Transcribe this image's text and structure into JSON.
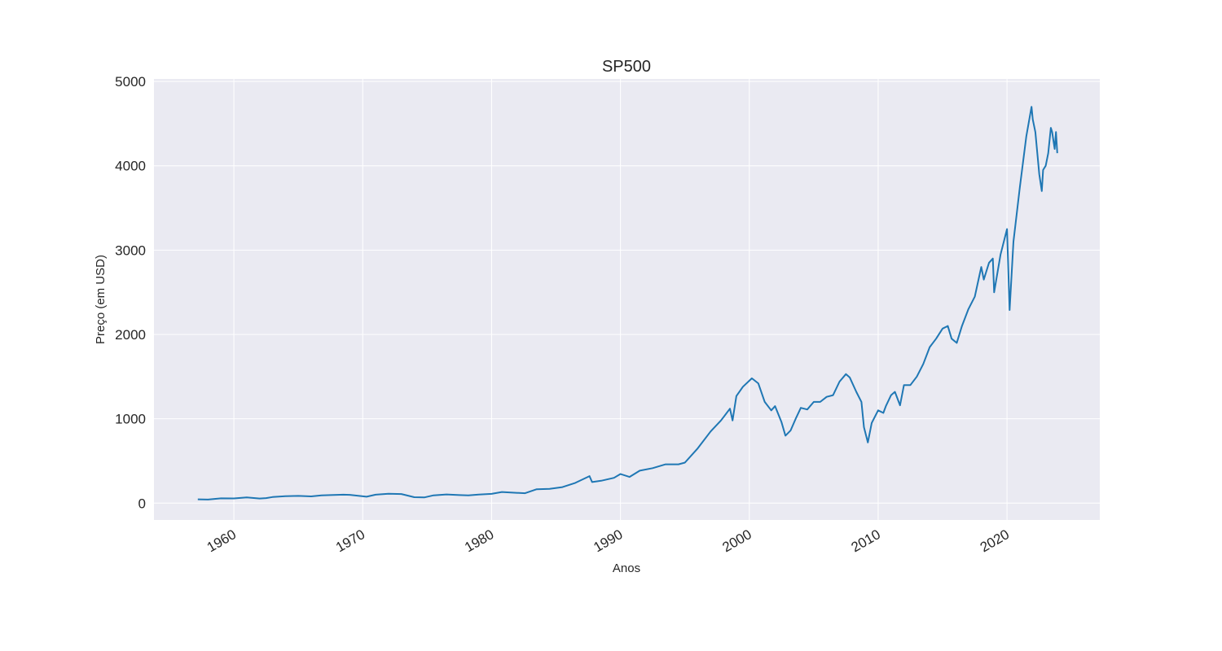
{
  "chart_data": {
    "type": "line",
    "title": "SP500",
    "xlabel": "Anos",
    "ylabel": "Preço (em USD)",
    "xlim": [
      1953.8,
      2027.2
    ],
    "ylim": [
      -200,
      5030
    ],
    "x_ticks": [
      1960,
      1970,
      1980,
      1990,
      2000,
      2010,
      2020
    ],
    "y_ticks": [
      0,
      1000,
      2000,
      3000,
      4000,
      5000
    ],
    "grid": true,
    "legend": "none",
    "colors": {
      "line": "#1f77b4",
      "plot_bg": "#eaeaf2",
      "grid": "#ffffff"
    },
    "series": [
      {
        "x": [
          1957.2,
          1958.0,
          1959.0,
          1960.0,
          1961.0,
          1962.0,
          1962.5,
          1963.0,
          1964.0,
          1965.0,
          1966.0,
          1966.8,
          1967.5,
          1968.5,
          1969.0,
          1970.3,
          1971.0,
          1972.0,
          1973.0,
          1974.0,
          1974.8,
          1975.5,
          1976.5,
          1977.5,
          1978.2,
          1979.0,
          1980.0,
          1980.8,
          1981.5,
          1982.6,
          1983.5,
          1984.5,
          1985.5,
          1986.5,
          1987.6,
          1987.8,
          1988.5,
          1989.5,
          1990.0,
          1990.7,
          1991.5,
          1992.5,
          1993.5,
          1994.5,
          1995.0,
          1996.0,
          1997.0,
          1997.8,
          1998.5,
          1998.7,
          1999.0,
          1999.5,
          2000.2,
          2000.7,
          2001.2,
          2001.7,
          2002.0,
          2002.5,
          2002.8,
          2003.2,
          2003.6,
          2004.0,
          2004.5,
          2005.0,
          2005.5,
          2006.0,
          2006.5,
          2007.0,
          2007.5,
          2007.8,
          2008.3,
          2008.7,
          2008.9,
          2009.2,
          2009.5,
          2010.0,
          2010.4,
          2010.6,
          2011.0,
          2011.3,
          2011.7,
          2012.0,
          2012.5,
          2013.0,
          2013.5,
          2014.0,
          2014.5,
          2015.0,
          2015.4,
          2015.7,
          2016.1,
          2016.5,
          2017.0,
          2017.5,
          2018.0,
          2018.2,
          2018.6,
          2018.9,
          2019.0,
          2019.5,
          2020.0,
          2020.2,
          2020.5,
          2021.0,
          2021.5,
          2021.9,
          2022.0,
          2022.2,
          2022.5,
          2022.7,
          2022.8,
          2023.0,
          2023.2,
          2023.4,
          2023.5,
          2023.7,
          2023.8,
          2023.9
        ],
        "values": [
          45,
          42,
          57,
          56,
          68,
          55,
          60,
          72,
          83,
          86,
          80,
          92,
          95,
          100,
          98,
          76,
          100,
          112,
          108,
          70,
          68,
          92,
          103,
          95,
          91,
          102,
          110,
          132,
          125,
          117,
          165,
          170,
          190,
          240,
          320,
          250,
          265,
          300,
          345,
          310,
          385,
          415,
          460,
          460,
          480,
          650,
          850,
          980,
          1120,
          980,
          1270,
          1380,
          1480,
          1420,
          1200,
          1100,
          1150,
          960,
          800,
          860,
          1000,
          1130,
          1110,
          1200,
          1200,
          1260,
          1280,
          1440,
          1530,
          1490,
          1320,
          1200,
          900,
          720,
          950,
          1100,
          1070,
          1150,
          1280,
          1320,
          1160,
          1400,
          1400,
          1500,
          1650,
          1850,
          1950,
          2070,
          2100,
          1950,
          1900,
          2100,
          2300,
          2450,
          2800,
          2650,
          2850,
          2900,
          2500,
          2950,
          3250,
          2290,
          3100,
          3750,
          4350,
          4700,
          4550,
          4400,
          3900,
          3700,
          3950,
          4000,
          4150,
          4450,
          4400,
          4200,
          4400,
          4150
        ]
      }
    ]
  }
}
